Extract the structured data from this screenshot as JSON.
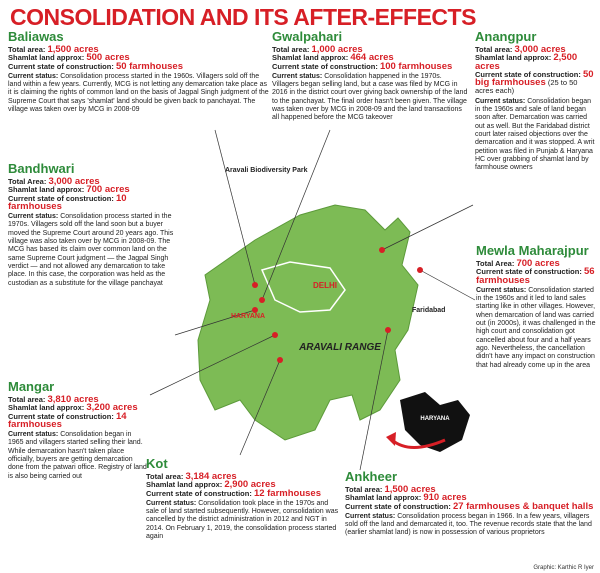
{
  "header": {
    "title": "CONSOLIDATION AND ITS AFTER-EFFECTS"
  },
  "villages": [
    {
      "name": "Baliawas",
      "fields": [
        {
          "label": "Total area:",
          "value": "1,500 acres"
        },
        {
          "label": "Shamlat land approx:",
          "value": "500 acres"
        },
        {
          "label": "Current state of construction:",
          "value": "50 farmhouses"
        }
      ],
      "status": {
        "label": "Current status:",
        "text": "Consolidation process started in the 1960s. Villagers sold off the land within a few years. Currently, MCG is not letting any demarcation take place as it is claiming the rights of common land on the basis of Jagpal Singh judgment of the Supreme Court that says 'shamlat' land should be given back to panchayat. The village was taken over by MCG in 2008-09"
      }
    },
    {
      "name": "Gwalpahari",
      "fields": [
        {
          "label": "Total area:",
          "value": "1,000 acres"
        },
        {
          "label": "Shamlat land approx:",
          "value": "464 acres"
        },
        {
          "label": "Current state of construction:",
          "value": "100 farmhouses"
        }
      ],
      "status": {
        "label": "Current status:",
        "text": "Consolidation happened in the 1970s. Villagers began selling land, but a case was filed by MCG in 2016 in the district court over giving back ownership of the land to the panchayat. The final order hasn't been given. The village was taken over by MCG in 2008-09 and the land transactions all happened before the MCG takeover"
      }
    },
    {
      "name": "Anangpur",
      "fields": [
        {
          "label": "Total area:",
          "value": "3,000 acres"
        },
        {
          "label": "Shamlat land approx:",
          "value": "2,500 acres"
        },
        {
          "label": "Current state of construction:",
          "value": "50 big farmhouses",
          "note": "(25 to 50 acres each)"
        }
      ],
      "status": {
        "label": "Current status:",
        "text": "Consolidation began in the 1960s and sale of land began soon after. Demarcation was carried out as well. But the Faridabad district court later raised objections over the demarcation and it was stopped. A writ petition was filed in Punjab & Haryana HC over grabbing of shamlat land by farmhouse owners"
      }
    },
    {
      "name": "Bandhwari",
      "fields": [
        {
          "label": "Total Area:",
          "value": "3,000 acres"
        },
        {
          "label": "Shamlat land approx:",
          "value": "700 acres"
        },
        {
          "label": "Current state of construction:",
          "value": "10 farmhouses"
        }
      ],
      "status": {
        "label": "Current status:",
        "text": "Consolidation process started in the 1970s. Villagers sold off the land soon but a buyer moved the Supreme Court around 20 years ago. This village was also taken over by MCG in 2008-09. The MCG has based its claim over common land on the same Supreme Court judgment — the Jagpal Singh verdict — and not allowed any demarcation to take place. In this case, the corporation was held as the custodian as a substitute for the village panchayat"
      }
    },
    {
      "name": "Mewla Maharajpur",
      "fields": [
        {
          "label": "Total Area:",
          "value": "700 acres"
        },
        {
          "label": "Current state of construction:",
          "value": "56 farmhouses"
        }
      ],
      "status": {
        "label": "Current status:",
        "text": "Consolidation started in the 1960s and it led to land sales starting like in other villages. However, when demarcation of land was carried out (in 2000s), it was challenged in the high court and consolidation got cancelled about four and a half years ago. Nevertheless, the cancellation didn't have any impact on construction that had already come up in the area"
      }
    },
    {
      "name": "Mangar",
      "fields": [
        {
          "label": "Total area:",
          "value": "3,810 acres"
        },
        {
          "label": "Shamlat land approx:",
          "value": "3,200 acres"
        },
        {
          "label": "Current state of construction:",
          "value": "14 farmhouses"
        }
      ],
      "status": {
        "label": "Current status:",
        "text": "Consolidation began in 1965 and villagers started selling their land. While demarcation hasn't taken place officially, buyers are getting demarcation done from the patwari office. Registry of land is also being carried out"
      }
    },
    {
      "name": "Kot",
      "fields": [
        {
          "label": "Total area:",
          "value": "3,184 acres"
        },
        {
          "label": "Shamlat land approx:",
          "value": "2,900 acres"
        },
        {
          "label": "Current state of construction:",
          "value": "12 farmhouses"
        }
      ],
      "status": {
        "label": "Current status:",
        "text": "Consolidation took place in the 1970s and sale of land started subsequently. However, consolidation was cancelled by the district administration in 2012 and NGT in 2014. On February 1, 2019, the consolidation process started again"
      }
    },
    {
      "name": "Ankheer",
      "fields": [
        {
          "label": "Total area:",
          "value": "1,500 acres"
        },
        {
          "label": "Shamlat land approx:",
          "value": "910 acres"
        },
        {
          "label": "Current state of construction:",
          "value": "27 farmhouses & banquet halls"
        }
      ],
      "status": {
        "label": "Current status:",
        "text": "Consolidation process began in 1966. In a few years, villagers sold off the land and demarcated it, too. The revenue records state that the land (earlier shamlat land) is now in possession of various proprietors"
      }
    }
  ],
  "map": {
    "park": "Aravali Biodiversity Park",
    "delhi": "DELHI",
    "haryana": "HARYANA",
    "range": "ARAVALI RANGE",
    "faridabad": "Faridabad",
    "inset": "HARYANA"
  },
  "credit": "Graphic: Karthic R Iyer"
}
